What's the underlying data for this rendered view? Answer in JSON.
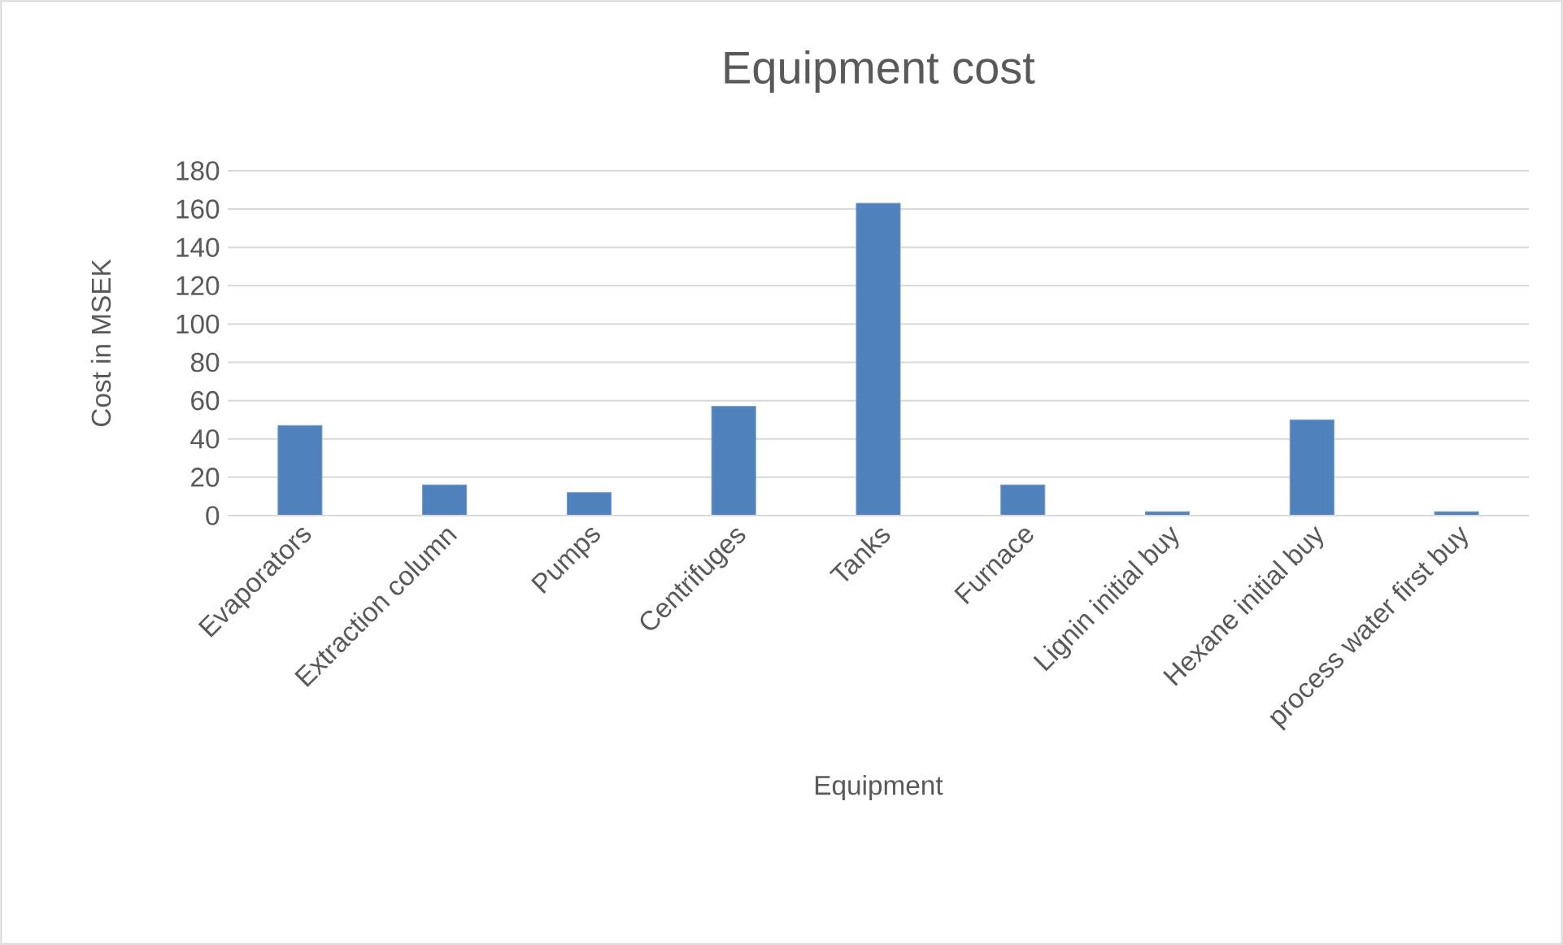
{
  "chart_data": {
    "type": "bar",
    "title": "Equipment cost",
    "xlabel": "Equipment",
    "ylabel": "Cost in MSEK",
    "categories": [
      "Evaporators",
      "Extraction column",
      "Pumps",
      "Centrifuges",
      "Tanks",
      "Furnace",
      "Lignin initial buy",
      "Hexane initial buy",
      "process water first buy"
    ],
    "values": [
      47,
      16,
      12,
      57,
      163,
      16,
      2,
      50,
      2
    ],
    "color": "#4f81bd",
    "ylim": [
      0,
      180
    ],
    "yticks": [
      0,
      20,
      40,
      60,
      80,
      100,
      120,
      140,
      160,
      180
    ],
    "grid": "y"
  }
}
